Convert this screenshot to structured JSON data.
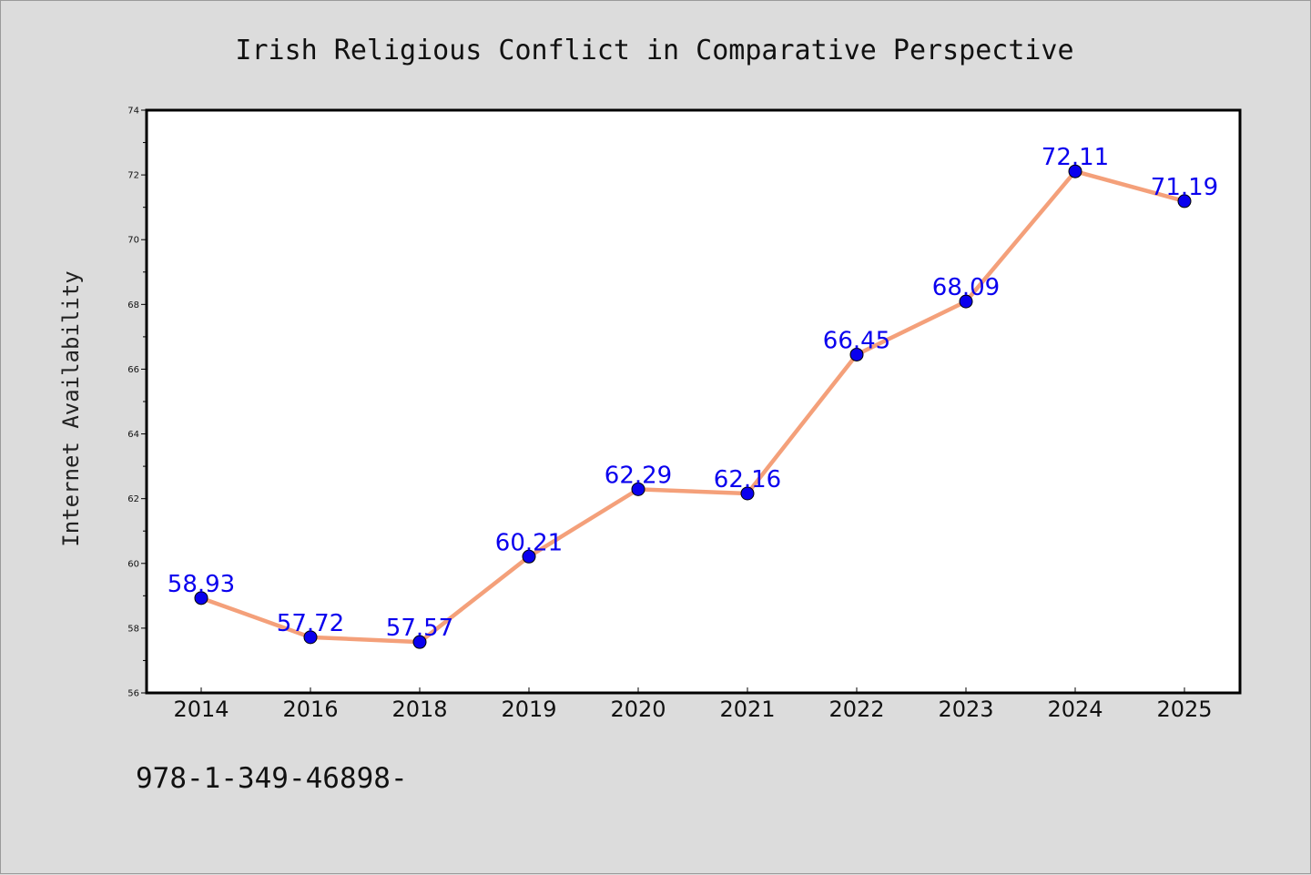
{
  "chart_data": {
    "type": "line",
    "title": "Irish Religious Conflict in Comparative Perspective",
    "xlabel": "",
    "ylabel": "Internet Availability",
    "categories": [
      "2014",
      "2016",
      "2018",
      "2019",
      "2020",
      "2021",
      "2022",
      "2023",
      "2024",
      "2025"
    ],
    "series": [
      {
        "values": [
          58.93,
          57.72,
          57.57,
          60.21,
          62.29,
          62.16,
          66.45,
          68.09,
          72.11,
          71.19
        ],
        "labels": [
          "58.93",
          "57.72",
          "57.57",
          "60.21",
          "62.29",
          "62.16",
          "66.45",
          "68.09",
          "72.11",
          "71.19"
        ],
        "line_color": "#f4a07a",
        "marker_color": "#0a00ee",
        "label_color": "#0a00ee"
      }
    ],
    "ylim": [
      56,
      74
    ],
    "yticks": [
      "56",
      "58",
      "60",
      "62",
      "64",
      "66",
      "68",
      "70",
      "72",
      "74"
    ],
    "grid": false,
    "legend": "none"
  },
  "footer": {
    "text": "978-1-349-46898-"
  },
  "colors": {
    "background": "#dcdcdc",
    "plot_background": "#ffffff",
    "frame": "#000000"
  }
}
